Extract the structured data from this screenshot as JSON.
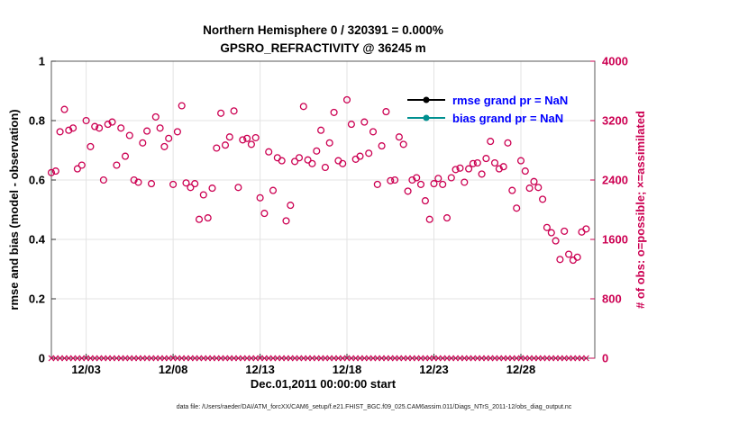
{
  "title": {
    "line1": "Northern Hemisphere 0 / 320391 = 0.000%",
    "line2": "GPSRO_REFRACTIVITY @ 36245 m"
  },
  "axes": {
    "left": {
      "label": "rmse and bias (model - observation)",
      "tick_values": [
        0,
        0.2,
        0.4,
        0.6,
        0.8,
        1
      ],
      "tick_labels": [
        "0",
        "0.2",
        "0.4",
        "0.6",
        "0.8",
        "1"
      ],
      "range": [
        0,
        1
      ],
      "color": "#000000"
    },
    "right": {
      "label": "# of obs: o=possible; ×=assimilated",
      "tick_values": [
        0,
        800,
        1600,
        2400,
        3200,
        4000
      ],
      "tick_labels": [
        "0",
        "800",
        "1600",
        "2400",
        "3200",
        "4000"
      ],
      "range": [
        0,
        4000
      ],
      "color": "#cc0052"
    },
    "x": {
      "label": "Dec.01,2011 00:00:00 start",
      "tick_days": [
        2,
        7,
        12,
        17,
        22,
        27
      ],
      "tick_labels": [
        "12/03",
        "12/08",
        "12/13",
        "12/18",
        "12/23",
        "12/28"
      ],
      "range_days": [
        0,
        31.25
      ]
    }
  },
  "legend": [
    {
      "label": "rmse grand pr = NaN",
      "color": "#000000"
    },
    {
      "label": "bias grand pr = NaN",
      "color": "#009090"
    }
  ],
  "legend_text_color": "#0000ff",
  "caption": "data file: /Users/raeder/DAI/ATM_forcXX/CAM6_setup/f.e21.FHIST_BGC.f09_025.CAM6assim.011/Diags_NTrS_2011-12/obs_diag_output.nc",
  "chart_data": {
    "type": "scatter",
    "title": "Northern Hemisphere 0 / 320391 = 0.000% — GPSRO_REFRACTIVITY @ 36245 m",
    "xlabel": "Dec.01,2011 00:00:00 start",
    "ylabel_left": "rmse and bias (model - observation)",
    "ylabel_right": "# of obs: o=possible; ×=assimilated",
    "x_unit": "days since Dec 1, 2011 00:00 (4 obs epochs per day)",
    "xlim_days": [
      0,
      31.25
    ],
    "ylim_right": [
      0,
      4000
    ],
    "ylim_left": [
      0,
      1
    ],
    "grid": true,
    "legend_position": "upper right inside",
    "series": [
      {
        "name": "# obs possible",
        "marker": "o",
        "color": "#cc0052",
        "axis": "right",
        "x_start": 0,
        "x_step": 0.25,
        "y": [
          2500,
          2520,
          3050,
          3350,
          3070,
          3100,
          2550,
          2600,
          3200,
          2850,
          3120,
          3100,
          2400,
          3150,
          3180,
          2600,
          3100,
          2720,
          3000,
          2400,
          2370,
          2900,
          3060,
          2350,
          3250,
          3100,
          2850,
          2960,
          2340,
          3050,
          3400,
          2360,
          2300,
          2350,
          1870,
          2200,
          1890,
          2290,
          2830,
          3300,
          2870,
          2980,
          3330,
          2300,
          2940,
          2960,
          2880,
          2970,
          2160,
          1950,
          2780,
          2260,
          2700,
          2660,
          1850,
          2060,
          2650,
          2700,
          3390,
          2670,
          2620,
          2790,
          3070,
          2570,
          2900,
          3310,
          2660,
          2620,
          3480,
          3150,
          2680,
          2720,
          3180,
          2760,
          3050,
          2340,
          2860,
          3320,
          2390,
          2400,
          2980,
          2880,
          2250,
          2400,
          2430,
          2340,
          2120,
          1870,
          2350,
          2420,
          2340,
          1890,
          2430,
          2540,
          2560,
          2370,
          2550,
          2620,
          2630,
          2480,
          2690,
          2920,
          2630,
          2550,
          2580,
          2900,
          2260,
          2020,
          2660,
          2520,
          2290,
          2380,
          2300,
          2140,
          1760,
          1690,
          1580,
          1330,
          1710,
          1400,
          1320,
          1360,
          1700,
          1740
        ]
      },
      {
        "name": "# obs assimilated",
        "marker": "x",
        "color": "#cc0052",
        "axis": "right",
        "x_start": 0,
        "x_step": 0.25,
        "y_constant": 0
      },
      {
        "name": "rmse",
        "marker": "dot-line",
        "color": "#000000",
        "axis": "left",
        "values": "NaN"
      },
      {
        "name": "bias",
        "marker": "dot-line",
        "color": "#009090",
        "axis": "left",
        "values": "NaN"
      }
    ]
  }
}
